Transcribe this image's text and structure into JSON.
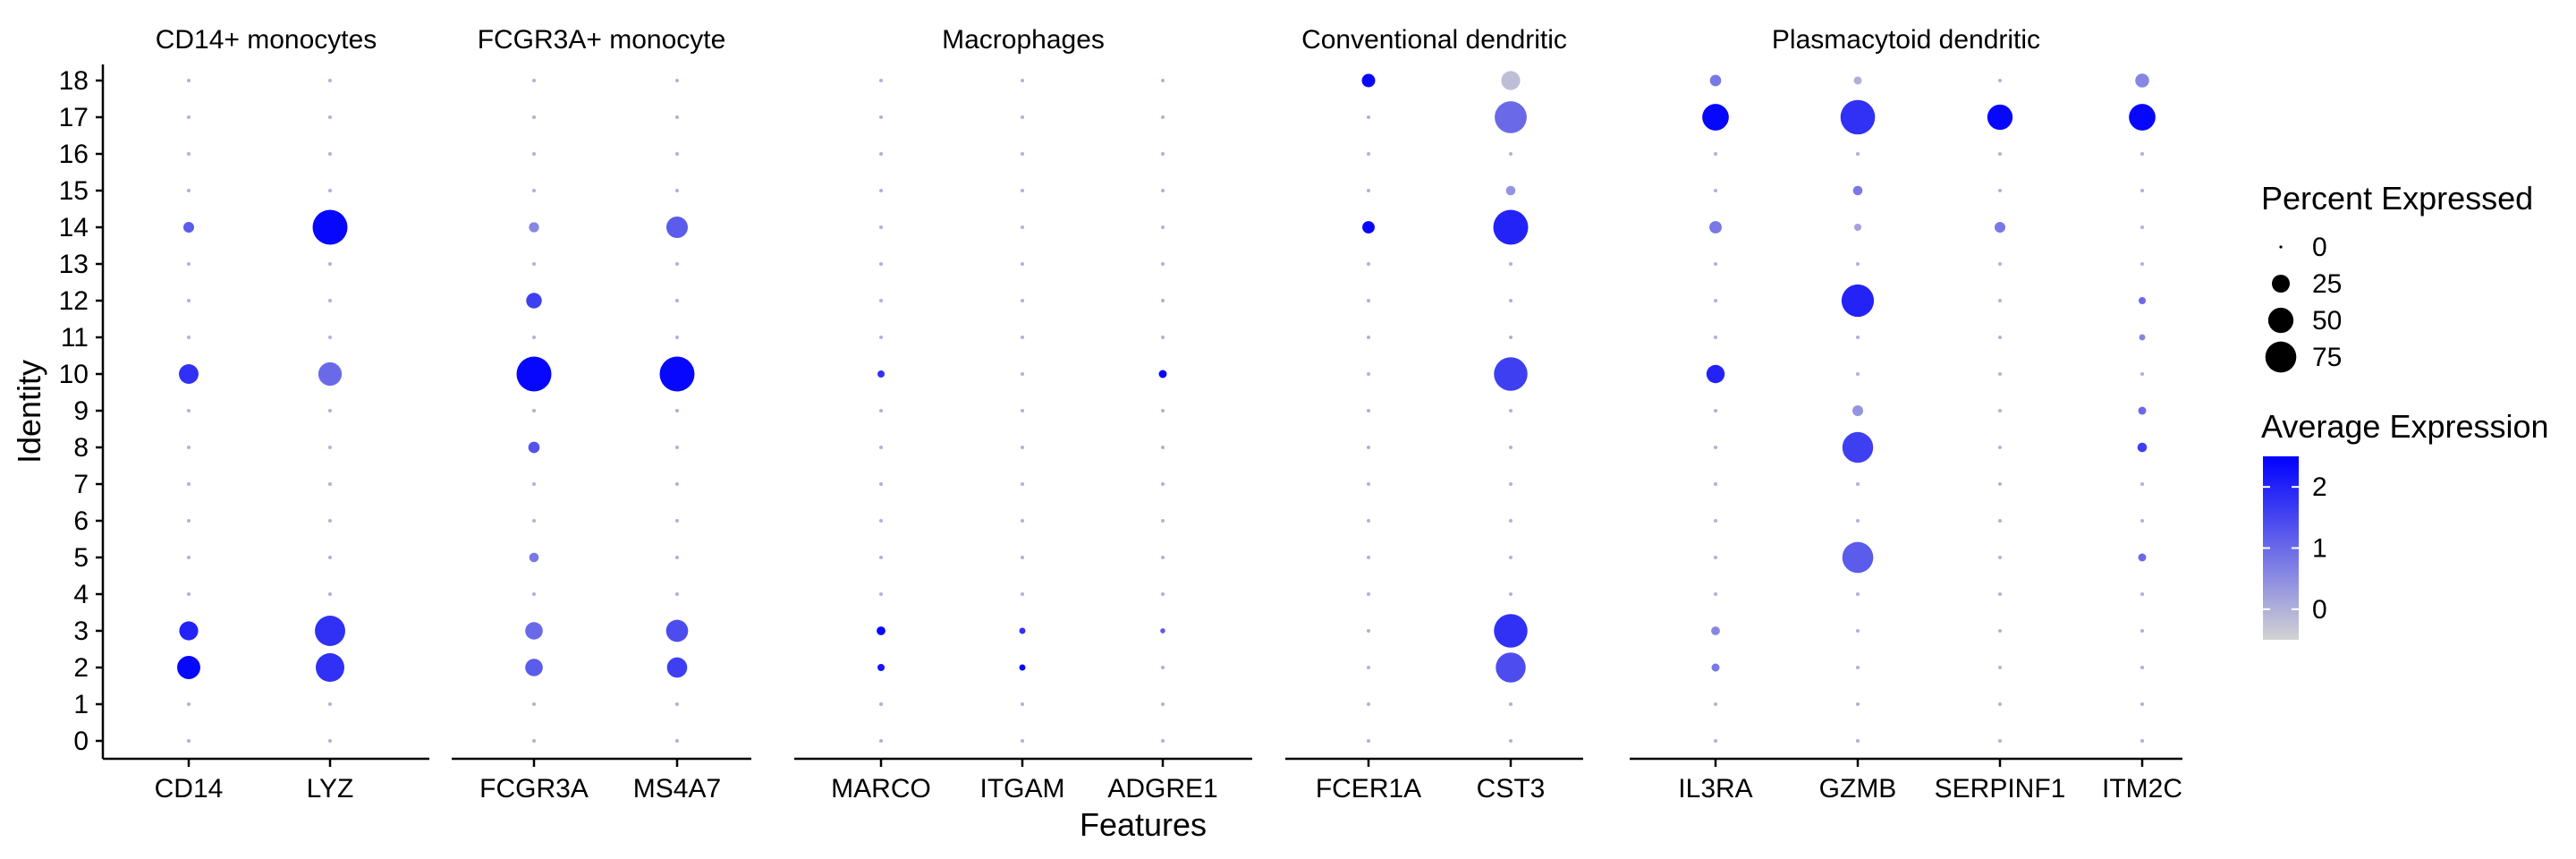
{
  "chart_data": {
    "type": "scatter",
    "subtype": "dot-plot",
    "xlabel": "Features",
    "ylabel": "Identity",
    "identities": [
      "0",
      "1",
      "2",
      "3",
      "4",
      "5",
      "6",
      "7",
      "8",
      "9",
      "10",
      "11",
      "12",
      "13",
      "14",
      "15",
      "16",
      "17",
      "18"
    ],
    "groups": [
      {
        "title": "CD14+ monocytes",
        "features": [
          "CD14",
          "LYZ"
        ]
      },
      {
        "title": "FCGR3A+ monocyte",
        "features": [
          "FCGR3A",
          "MS4A7"
        ]
      },
      {
        "title": "Macrophages",
        "features": [
          "MARCO",
          "ITGAM",
          "ADGRE1"
        ]
      },
      {
        "title": "Conventional dendritic",
        "features": [
          "FCER1A",
          "CST3"
        ]
      },
      {
        "title": "Plasmacytoid dendritic",
        "features": [
          "IL3RA",
          "GZMB",
          "SERPINF1",
          "ITM2C"
        ]
      }
    ],
    "colors": {
      "low": "#d3d3d3",
      "high": "#0000ff"
    },
    "default_point": {
      "pct": 1,
      "avg": 0
    },
    "points": {
      "CD14": [
        {
          "id": "2",
          "pct": 42,
          "avg": 2.4
        },
        {
          "id": "3",
          "pct": 28,
          "avg": 2.0
        },
        {
          "id": "10",
          "pct": 30,
          "avg": 1.8
        },
        {
          "id": "14",
          "pct": 9,
          "avg": 1.2
        }
      ],
      "LYZ": [
        {
          "id": "2",
          "pct": 64,
          "avg": 1.8
        },
        {
          "id": "3",
          "pct": 72,
          "avg": 1.8
        },
        {
          "id": "10",
          "pct": 43,
          "avg": 1.0
        },
        {
          "id": "14",
          "pct": 95,
          "avg": 2.4
        }
      ],
      "FCGR3A": [
        {
          "id": "2",
          "pct": 24,
          "avg": 1.2
        },
        {
          "id": "3",
          "pct": 24,
          "avg": 1.0
        },
        {
          "id": "5",
          "pct": 7,
          "avg": 0.8
        },
        {
          "id": "8",
          "pct": 10,
          "avg": 1.3
        },
        {
          "id": "10",
          "pct": 95,
          "avg": 2.4
        },
        {
          "id": "12",
          "pct": 19,
          "avg": 1.6
        },
        {
          "id": "14",
          "pct": 8,
          "avg": 0.6
        }
      ],
      "MS4A7": [
        {
          "id": "2",
          "pct": 32,
          "avg": 1.6
        },
        {
          "id": "3",
          "pct": 38,
          "avg": 1.4
        },
        {
          "id": "10",
          "pct": 95,
          "avg": 2.4
        },
        {
          "id": "14",
          "pct": 36,
          "avg": 1.2
        }
      ],
      "MARCO": [
        {
          "id": "2",
          "pct": 4,
          "avg": 2.2
        },
        {
          "id": "3",
          "pct": 6,
          "avg": 2.4
        },
        {
          "id": "10",
          "pct": 4,
          "avg": 1.8
        }
      ],
      "ITGAM": [
        {
          "id": "2",
          "pct": 3,
          "avg": 2.4
        },
        {
          "id": "3",
          "pct": 3,
          "avg": 1.8
        }
      ],
      "ADGRE1": [
        {
          "id": "3",
          "pct": 2,
          "avg": 1.2
        },
        {
          "id": "10",
          "pct": 5,
          "avg": 2.4
        }
      ],
      "FCER1A": [
        {
          "id": "14",
          "pct": 12,
          "avg": 2.4
        },
        {
          "id": "18",
          "pct": 14,
          "avg": 2.4
        }
      ],
      "CST3": [
        {
          "id": "2",
          "pct": 70,
          "avg": 1.4
        },
        {
          "id": "3",
          "pct": 88,
          "avg": 1.8
        },
        {
          "id": "10",
          "pct": 88,
          "avg": 1.6
        },
        {
          "id": "14",
          "pct": 95,
          "avg": 2.0
        },
        {
          "id": "15",
          "pct": 7,
          "avg": 0.4
        },
        {
          "id": "17",
          "pct": 80,
          "avg": 1.0
        },
        {
          "id": "18",
          "pct": 28,
          "avg": -0.2
        }
      ],
      "IL3RA": [
        {
          "id": "2",
          "pct": 5,
          "avg": 0.8
        },
        {
          "id": "3",
          "pct": 6,
          "avg": 0.6
        },
        {
          "id": "10",
          "pct": 26,
          "avg": 2.0
        },
        {
          "id": "14",
          "pct": 12,
          "avg": 0.8
        },
        {
          "id": "17",
          "pct": 55,
          "avg": 2.4
        },
        {
          "id": "18",
          "pct": 10,
          "avg": 0.8
        }
      ],
      "GZMB": [
        {
          "id": "5",
          "pct": 75,
          "avg": 1.2
        },
        {
          "id": "8",
          "pct": 74,
          "avg": 1.6
        },
        {
          "id": "9",
          "pct": 9,
          "avg": 0.4
        },
        {
          "id": "12",
          "pct": 82,
          "avg": 2.0
        },
        {
          "id": "14",
          "pct": 4,
          "avg": 0.2
        },
        {
          "id": "15",
          "pct": 7,
          "avg": 0.8
        },
        {
          "id": "17",
          "pct": 93,
          "avg": 1.8
        },
        {
          "id": "18",
          "pct": 5,
          "avg": 0.0
        }
      ],
      "SERPINF1": [
        {
          "id": "14",
          "pct": 9,
          "avg": 0.8
        },
        {
          "id": "17",
          "pct": 50,
          "avg": 2.4
        }
      ],
      "ITM2C": [
        {
          "id": "5",
          "pct": 5,
          "avg": 1.0
        },
        {
          "id": "8",
          "pct": 7,
          "avg": 1.6
        },
        {
          "id": "9",
          "pct": 5,
          "avg": 1.0
        },
        {
          "id": "11",
          "pct": 3,
          "avg": 0.6
        },
        {
          "id": "12",
          "pct": 4,
          "avg": 1.0
        },
        {
          "id": "17",
          "pct": 55,
          "avg": 2.4
        },
        {
          "id": "18",
          "pct": 15,
          "avg": 0.6
        }
      ]
    },
    "legend_size": {
      "title": "Percent Expressed",
      "values": [
        0,
        25,
        50,
        75
      ],
      "labels": [
        "0",
        "25",
        "50",
        "75"
      ]
    },
    "legend_color": {
      "title": "Average Expression",
      "range": [
        -0.5,
        2.5
      ],
      "ticks": [
        2,
        1,
        0
      ],
      "labels": [
        "2",
        "1",
        "0"
      ]
    },
    "legend_placement": "right",
    "grid": false
  }
}
